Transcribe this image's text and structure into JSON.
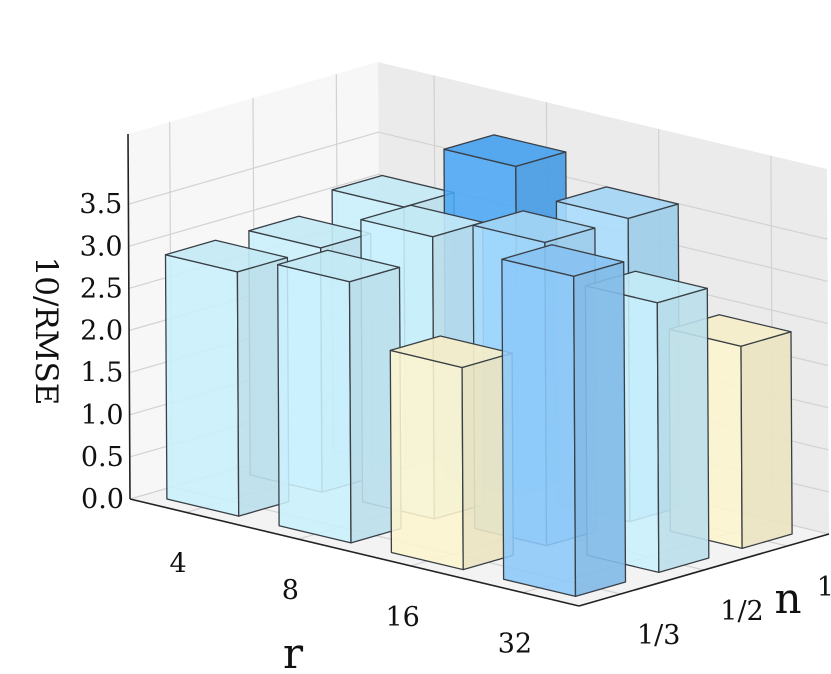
{
  "chart_data": {
    "type": "bar3d",
    "title": "",
    "xlabel": "r",
    "ylabel": "n",
    "zlabel": "10/RMSE",
    "x_categories": [
      "4",
      "8",
      "16",
      "32"
    ],
    "y_categories": [
      "1/3",
      "1/2",
      "1"
    ],
    "z_ticks": [
      "0.0",
      "0.5",
      "1.0",
      "1.5",
      "2.0",
      "2.5",
      "3.0",
      "3.5"
    ],
    "zlim": [
      0,
      3.9
    ],
    "colors": {
      "light_cyan": "#c9f0fd",
      "light_blue": "#a9dcfc",
      "medium_blue": "#8cc8f9",
      "deep_blue": "#4aa6f5",
      "light_yellow": "#fdf5cf"
    },
    "bars": [
      {
        "r": "4",
        "n": "1/3",
        "value": 2.9,
        "color": "light_cyan"
      },
      {
        "r": "4",
        "n": "1/2",
        "value": 2.9,
        "color": "light_cyan"
      },
      {
        "r": "4",
        "n": "1",
        "value": 3.1,
        "color": "light_cyan"
      },
      {
        "r": "8",
        "n": "1/3",
        "value": 3.1,
        "color": "light_cyan"
      },
      {
        "r": "8",
        "n": "1/2",
        "value": 3.35,
        "color": "light_cyan"
      },
      {
        "r": "8",
        "n": "1",
        "value": 3.9,
        "color": "deep_blue"
      },
      {
        "r": "16",
        "n": "1/3",
        "value": 2.4,
        "color": "light_yellow"
      },
      {
        "r": "16",
        "n": "1/2",
        "value": 3.6,
        "color": "light_blue"
      },
      {
        "r": "16",
        "n": "1",
        "value": 3.6,
        "color": "light_blue"
      },
      {
        "r": "32",
        "n": "1/3",
        "value": 3.8,
        "color": "medium_blue"
      },
      {
        "r": "32",
        "n": "1/2",
        "value": 3.2,
        "color": "light_cyan"
      },
      {
        "r": "32",
        "n": "1",
        "value": 2.4,
        "color": "light_yellow"
      }
    ]
  }
}
